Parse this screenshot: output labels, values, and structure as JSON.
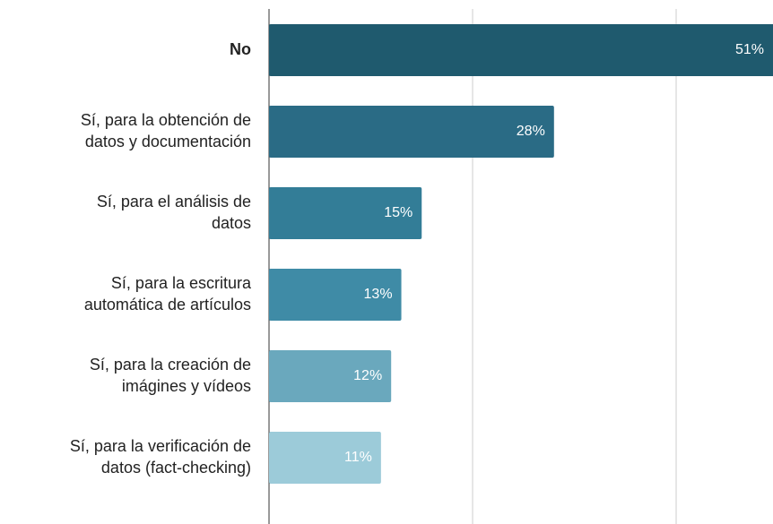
{
  "chart_data": {
    "type": "barh",
    "categories": [
      "No",
      "Sí, para la obtención de datos y documentación",
      "Sí, para el análisis de datos",
      "Sí, para la escritura automática de artículos",
      "Sí, para la creación de imágines y vídeos",
      "Sí, para la verificación de datos (fact-checking)"
    ],
    "values": [
      51,
      28,
      15,
      13,
      12,
      11
    ],
    "value_labels": [
      "51%",
      "28%",
      "15%",
      "13%",
      "12%",
      "11%"
    ],
    "colors": [
      "#1f5a6e",
      "#2a6b85",
      "#337d97",
      "#3f8ba6",
      "#6aa8bd",
      "#9ccbd9"
    ],
    "xlim": [
      0,
      60
    ],
    "xticks": [
      0,
      20,
      40,
      60
    ],
    "grid": true
  }
}
